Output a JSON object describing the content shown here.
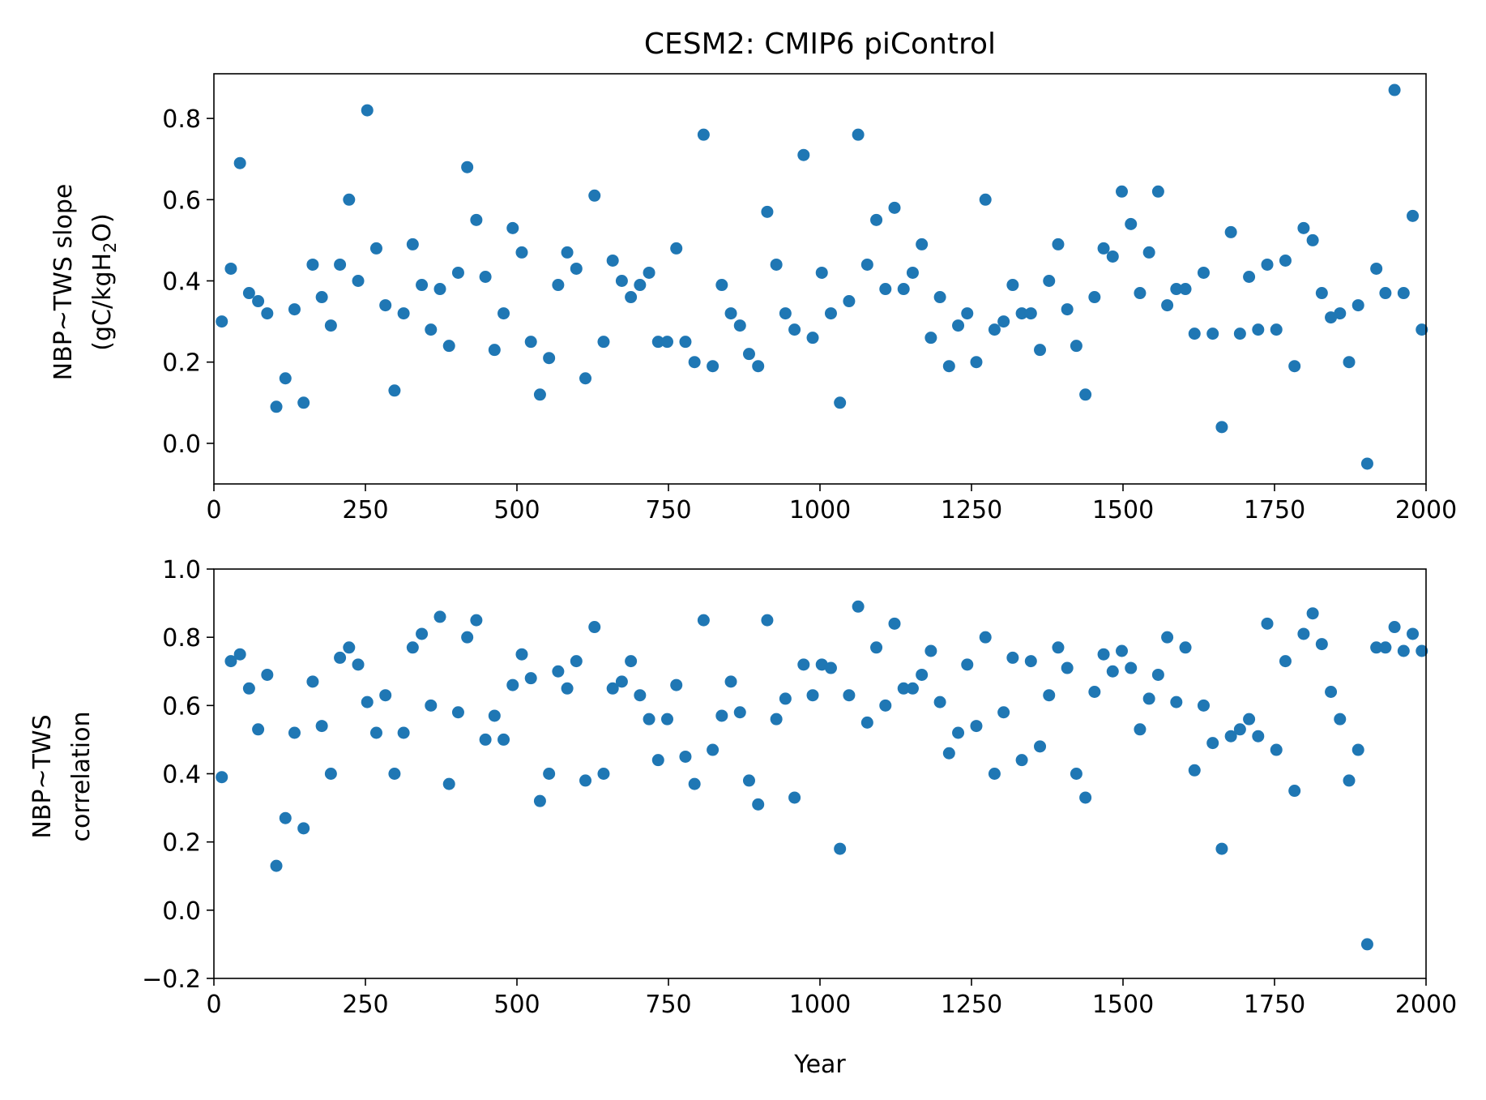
{
  "figure": {
    "title": "CESM2: CMIP6 piControl",
    "marker_color": "#1f77b4"
  },
  "chart_data": [
    {
      "type": "scatter",
      "title": "",
      "xlabel": "",
      "ylabel_line1": "NBP~TWS slope",
      "ylabel_unit_prefix": "(gC/kgH",
      "ylabel_unit_sub": "2",
      "ylabel_unit_suffix": "O)",
      "xlim": [
        0,
        2000
      ],
      "ylim": [
        -0.1,
        0.91
      ],
      "xticks": [
        0,
        250,
        500,
        750,
        1000,
        1250,
        1500,
        1750,
        2000
      ],
      "yticks": [
        0.0,
        0.2,
        0.4,
        0.6,
        0.8
      ],
      "xtick_labels": [
        "0",
        "250",
        "500",
        "750",
        "1000",
        "1250",
        "1500",
        "1750",
        "2000"
      ],
      "ytick_labels": [
        "0.0",
        "0.2",
        "0.4",
        "0.6",
        "0.8"
      ],
      "grid": false,
      "legend": "none",
      "series": [
        {
          "x": [
            13,
            28,
            43,
            58,
            73,
            88,
            103,
            118,
            133,
            148,
            163,
            178,
            193,
            208,
            223,
            238,
            253,
            268,
            283,
            298,
            313,
            328,
            343,
            358,
            373,
            388,
            403,
            418,
            433,
            448,
            463,
            478,
            493,
            508,
            523,
            538,
            553,
            568,
            583,
            598,
            613,
            628,
            643,
            658,
            673,
            688,
            703,
            718,
            733,
            748,
            763,
            778,
            793,
            808,
            823,
            838,
            853,
            868,
            883,
            898,
            913,
            928,
            943,
            958,
            973,
            988,
            1003,
            1018,
            1033,
            1048,
            1063,
            1078,
            1093,
            1108,
            1123,
            1138,
            1153,
            1168,
            1183,
            1198,
            1213,
            1228,
            1243,
            1258,
            1273,
            1288,
            1303,
            1318,
            1333,
            1348,
            1363,
            1378,
            1393,
            1408,
            1423,
            1438,
            1453,
            1468,
            1483,
            1498,
            1513,
            1528,
            1543,
            1558,
            1573,
            1588,
            1603,
            1618,
            1633,
            1648,
            1663,
            1678,
            1693,
            1708,
            1723,
            1738,
            1753,
            1768,
            1783,
            1798,
            1813,
            1828,
            1843,
            1858,
            1873,
            1888,
            1903,
            1918,
            1933,
            1948,
            1963,
            1978,
            1993
          ],
          "y": [
            0.3,
            0.43,
            0.69,
            0.37,
            0.35,
            0.32,
            0.09,
            0.16,
            0.33,
            0.1,
            0.44,
            0.36,
            0.29,
            0.44,
            0.6,
            0.4,
            0.82,
            0.48,
            0.34,
            0.13,
            0.32,
            0.49,
            0.39,
            0.28,
            0.38,
            0.24,
            0.42,
            0.68,
            0.55,
            0.41,
            0.23,
            0.32,
            0.53,
            0.47,
            0.25,
            0.12,
            0.21,
            0.39,
            0.47,
            0.43,
            0.16,
            0.61,
            0.25,
            0.45,
            0.4,
            0.36,
            0.39,
            0.42,
            0.25,
            0.25,
            0.48,
            0.25,
            0.2,
            0.76,
            0.19,
            0.39,
            0.32,
            0.29,
            0.22,
            0.19,
            0.57,
            0.44,
            0.32,
            0.28,
            0.71,
            0.26,
            0.42,
            0.32,
            0.1,
            0.35,
            0.76,
            0.44,
            0.55,
            0.38,
            0.58,
            0.38,
            0.42,
            0.49,
            0.26,
            0.36,
            0.19,
            0.29,
            0.32,
            0.2,
            0.6,
            0.28,
            0.3,
            0.39,
            0.32,
            0.32,
            0.23,
            0.4,
            0.49,
            0.33,
            0.24,
            0.12,
            0.36,
            0.48,
            0.46,
            0.62,
            0.54,
            0.37,
            0.47,
            0.62,
            0.34,
            0.38,
            0.38,
            0.27,
            0.42,
            0.27,
            0.04,
            0.52,
            0.27,
            0.41,
            0.28,
            0.44,
            0.28,
            0.45,
            0.19,
            0.53,
            0.5,
            0.37,
            0.31,
            0.32,
            0.2,
            0.34,
            -0.05,
            0.43,
            0.37,
            0.87,
            0.37,
            0.56,
            0.28
          ]
        }
      ]
    },
    {
      "type": "scatter",
      "title": "",
      "xlabel": "Year",
      "ylabel_line1": "NBP~TWS",
      "ylabel_line2": "correlation",
      "xlim": [
        0,
        2000
      ],
      "ylim": [
        -0.2,
        1.0
      ],
      "xticks": [
        0,
        250,
        500,
        750,
        1000,
        1250,
        1500,
        1750,
        2000
      ],
      "yticks": [
        -0.2,
        0.0,
        0.2,
        0.4,
        0.6,
        0.8,
        1.0
      ],
      "xtick_labels": [
        "0",
        "250",
        "500",
        "750",
        "1000",
        "1250",
        "1500",
        "1750",
        "2000"
      ],
      "ytick_labels": [
        "−0.2",
        "0.0",
        "0.2",
        "0.4",
        "0.6",
        "0.8",
        "1.0"
      ],
      "grid": false,
      "legend": "none",
      "series": [
        {
          "x": [
            13,
            28,
            43,
            58,
            73,
            88,
            103,
            118,
            133,
            148,
            163,
            178,
            193,
            208,
            223,
            238,
            253,
            268,
            283,
            298,
            313,
            328,
            343,
            358,
            373,
            388,
            403,
            418,
            433,
            448,
            463,
            478,
            493,
            508,
            523,
            538,
            553,
            568,
            583,
            598,
            613,
            628,
            643,
            658,
            673,
            688,
            703,
            718,
            733,
            748,
            763,
            778,
            793,
            808,
            823,
            838,
            853,
            868,
            883,
            898,
            913,
            928,
            943,
            958,
            973,
            988,
            1003,
            1018,
            1033,
            1048,
            1063,
            1078,
            1093,
            1108,
            1123,
            1138,
            1153,
            1168,
            1183,
            1198,
            1213,
            1228,
            1243,
            1258,
            1273,
            1288,
            1303,
            1318,
            1333,
            1348,
            1363,
            1378,
            1393,
            1408,
            1423,
            1438,
            1453,
            1468,
            1483,
            1498,
            1513,
            1528,
            1543,
            1558,
            1573,
            1588,
            1603,
            1618,
            1633,
            1648,
            1663,
            1678,
            1693,
            1708,
            1723,
            1738,
            1753,
            1768,
            1783,
            1798,
            1813,
            1828,
            1843,
            1858,
            1873,
            1888,
            1903,
            1918,
            1933,
            1948,
            1963,
            1978,
            1993
          ],
          "y": [
            0.39,
            0.73,
            0.75,
            0.65,
            0.53,
            0.69,
            0.13,
            0.27,
            0.52,
            0.24,
            0.67,
            0.54,
            0.4,
            0.74,
            0.77,
            0.72,
            0.61,
            0.52,
            0.63,
            0.4,
            0.52,
            0.77,
            0.81,
            0.6,
            0.86,
            0.37,
            0.58,
            0.8,
            0.85,
            0.5,
            0.57,
            0.5,
            0.66,
            0.75,
            0.68,
            0.32,
            0.4,
            0.7,
            0.65,
            0.73,
            0.38,
            0.83,
            0.4,
            0.65,
            0.67,
            0.73,
            0.63,
            0.56,
            0.44,
            0.56,
            0.66,
            0.45,
            0.37,
            0.85,
            0.47,
            0.57,
            0.67,
            0.58,
            0.38,
            0.31,
            0.85,
            0.56,
            0.62,
            0.33,
            0.72,
            0.63,
            0.72,
            0.71,
            0.18,
            0.63,
            0.89,
            0.55,
            0.77,
            0.6,
            0.84,
            0.65,
            0.65,
            0.69,
            0.76,
            0.61,
            0.46,
            0.52,
            0.72,
            0.54,
            0.8,
            0.4,
            0.58,
            0.74,
            0.44,
            0.73,
            0.48,
            0.63,
            0.77,
            0.71,
            0.4,
            0.33,
            0.64,
            0.75,
            0.7,
            0.76,
            0.71,
            0.53,
            0.62,
            0.69,
            0.8,
            0.61,
            0.77,
            0.41,
            0.6,
            0.49,
            0.18,
            0.51,
            0.53,
            0.56,
            0.51,
            0.84,
            0.47,
            0.73,
            0.35,
            0.81,
            0.87,
            0.78,
            0.64,
            0.56,
            0.38,
            0.47,
            -0.1,
            0.77,
            0.77,
            0.83,
            0.76,
            0.81,
            0.76
          ]
        }
      ]
    }
  ]
}
